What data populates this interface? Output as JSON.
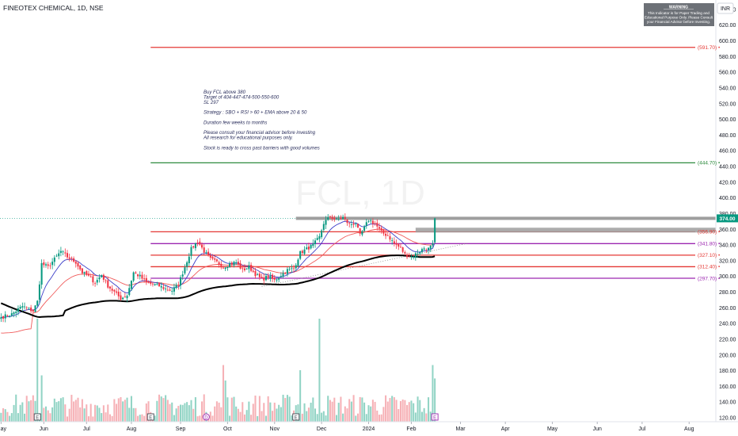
{
  "header": {
    "symbol_title": "FINEOTEX CHEMICAL, 1D, NSE",
    "currency": "INR"
  },
  "warning_box": {
    "lines": [
      "WARNING",
      "This Indicator is for Paper Trading and",
      "Educational Purpose Only. Please Consult",
      "your Financial Advisor before Investing."
    ]
  },
  "watermark": "FCL, 1D",
  "notes": [
    "Buy FCL above 380",
    "Target of 404-447-474-500-550-600",
    "SL 297",
    "",
    "Strategy : SBO + RSI > 60 + EMA above 20 & 50",
    "",
    "Duration few weeks to months",
    "",
    "Please consult your financial advisor before investing",
    "All research for educational purposes only.",
    "",
    "Stock is ready to cross past barriers with good volumes"
  ],
  "chart_data": {
    "type": "candlestick",
    "title": "FINEOTEX CHEMICAL, 1D, NSE",
    "y_axis": {
      "range": [
        115,
        652
      ],
      "ticks": [
        640,
        620,
        600,
        580,
        560,
        540,
        520,
        500,
        480,
        460,
        440,
        420,
        400,
        380,
        360,
        340,
        320,
        300,
        280,
        260,
        240,
        220,
        200,
        180,
        160,
        140,
        120
      ],
      "tick_labels": [
        "640.00",
        "620.00",
        "600.00",
        "580.00",
        "560.00",
        "540.00",
        "520.00",
        "500.00",
        "480.00",
        "460.00",
        "440.00",
        "420.00",
        "400.00",
        "380.00",
        "360.00",
        "340.00",
        "320.00",
        "300.00",
        "280.00",
        "260.00",
        "240.00",
        "220.00",
        "200.00",
        "180.00",
        "160.00",
        "140.00",
        "120.00"
      ],
      "position": "right"
    },
    "x_axis": {
      "labels": [
        "May",
        "Jun",
        "Jul",
        "Aug",
        "Sep",
        "Oct",
        "Nov",
        "Dec",
        "2024",
        "Feb",
        "Mar",
        "Apr",
        "May",
        "Jun",
        "Jul",
        "Aug"
      ],
      "label_index": [
        0,
        20,
        40,
        61,
        84,
        106,
        128,
        150,
        172,
        192,
        215,
        236,
        258,
        279,
        300,
        322
      ],
      "total_slots": 335
    },
    "last_price": {
      "value": 374.0,
      "label": "374.00",
      "color": "#089981"
    },
    "levels": [
      {
        "value": 591.7,
        "label": "(591.70)",
        "color": "#e53935"
      },
      {
        "value": 444.7,
        "label": "(444.70)",
        "color": "#2e8b3e"
      },
      {
        "value": 356.9,
        "label": "(356.90)",
        "color": "#e53935"
      },
      {
        "value": 341.8,
        "label": "(341.80)",
        "color": "#9c27b0"
      },
      {
        "value": 327.1,
        "label": "(327.10)",
        "color": "#e53935"
      },
      {
        "value": 312.4,
        "label": "(312.40)",
        "color": "#e53935"
      },
      {
        "value": 297.7,
        "label": "(297.70)",
        "color": "#9c27b0"
      }
    ],
    "resistance_zone": {
      "value": 374.0,
      "color": "#9e9e9e"
    },
    "support_zone": {
      "value": 359.0,
      "color": "#9e9e9e"
    },
    "event_markers": [
      {
        "label": "E",
        "index": 17
      },
      {
        "label": "E",
        "index": 70
      },
      {
        "label": "D",
        "index": 96
      },
      {
        "label": "E",
        "index": 138
      },
      {
        "label": "E",
        "index": 203
      }
    ],
    "keypoints": [
      [
        0,
        248
      ],
      [
        5,
        252
      ],
      [
        10,
        262
      ],
      [
        15,
        256
      ],
      [
        17,
        268
      ],
      [
        19,
        316
      ],
      [
        22,
        312
      ],
      [
        25,
        322
      ],
      [
        28,
        332
      ],
      [
        31,
        325
      ],
      [
        35,
        318
      ],
      [
        38,
        305
      ],
      [
        41,
        300
      ],
      [
        44,
        292
      ],
      [
        47,
        302
      ],
      [
        50,
        288
      ],
      [
        53,
        280
      ],
      [
        56,
        272
      ],
      [
        59,
        276
      ],
      [
        62,
        305
      ],
      [
        65,
        300
      ],
      [
        68,
        292
      ],
      [
        71,
        290
      ],
      [
        74,
        288
      ],
      [
        77,
        284
      ],
      [
        80,
        282
      ],
      [
        83,
        290
      ],
      [
        86,
        312
      ],
      [
        89,
        335
      ],
      [
        92,
        345
      ],
      [
        95,
        332
      ],
      [
        98,
        322
      ],
      [
        101,
        318
      ],
      [
        104,
        312
      ],
      [
        107,
        316
      ],
      [
        110,
        318
      ],
      [
        113,
        308
      ],
      [
        116,
        312
      ],
      [
        119,
        303
      ],
      [
        122,
        296
      ],
      [
        125,
        300
      ],
      [
        128,
        295
      ],
      [
        131,
        302
      ],
      [
        134,
        308
      ],
      [
        137,
        310
      ],
      [
        140,
        330
      ],
      [
        143,
        335
      ],
      [
        146,
        340
      ],
      [
        149,
        350
      ],
      [
        151,
        368
      ],
      [
        154,
        376
      ],
      [
        157,
        372
      ],
      [
        160,
        375
      ],
      [
        163,
        366
      ],
      [
        166,
        368
      ],
      [
        168,
        352
      ],
      [
        170,
        362
      ],
      [
        172,
        372
      ],
      [
        175,
        367
      ],
      [
        178,
        356
      ],
      [
        181,
        352
      ],
      [
        184,
        342
      ],
      [
        187,
        336
      ],
      [
        189,
        328
      ],
      [
        192,
        325
      ],
      [
        195,
        330
      ],
      [
        198,
        336
      ],
      [
        200,
        335
      ],
      [
        202,
        340
      ],
      [
        203,
        374
      ]
    ],
    "volume_spikes": [
      [
        17,
        1.0
      ],
      [
        19,
        0.45
      ],
      [
        104,
        0.55
      ],
      [
        105,
        0.4
      ],
      [
        140,
        0.5
      ],
      [
        149,
        1.0
      ],
      [
        202,
        0.55
      ],
      [
        203,
        0.42
      ]
    ]
  }
}
